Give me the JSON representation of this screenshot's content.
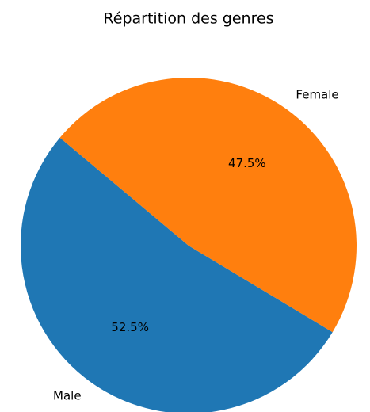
{
  "chart_data": {
    "type": "pie",
    "title": "Répartition des genres",
    "categories": [
      "Male",
      "Female"
    ],
    "values": [
      52.5,
      47.5
    ],
    "value_labels": [
      "52.5%",
      "47.5%"
    ],
    "colors": [
      "#1f77b4",
      "#ff7f0e"
    ],
    "startangle": 140,
    "counterclock": true
  }
}
